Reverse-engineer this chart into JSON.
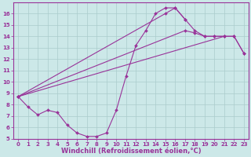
{
  "xlabel": "Windchill (Refroidissement éolien,°C)",
  "background_color": "#cce8e8",
  "grid_color": "#aacccc",
  "line_color": "#993399",
  "xlim": [
    -0.5,
    23.5
  ],
  "ylim": [
    5,
    17
  ],
  "xticks": [
    0,
    1,
    2,
    3,
    4,
    5,
    6,
    7,
    8,
    9,
    10,
    11,
    12,
    13,
    14,
    15,
    16,
    17,
    18,
    19,
    20,
    21,
    22,
    23
  ],
  "yticks": [
    5,
    6,
    7,
    8,
    9,
    10,
    11,
    12,
    13,
    14,
    15,
    16
  ],
  "curves": [
    {
      "x": [
        0,
        1,
        2,
        3,
        4,
        5,
        6,
        7,
        8,
        9,
        10,
        11,
        12,
        13,
        14,
        15,
        16,
        17
      ],
      "y": [
        8.7,
        7.8,
        7.1,
        7.5,
        7.3,
        6.2,
        5.5,
        5.2,
        5.2,
        5.5,
        7.5,
        10.5,
        13.2,
        14.5,
        16.0,
        16.5,
        16.5,
        15.5
      ]
    },
    {
      "x": [
        0,
        15,
        16,
        17,
        18,
        19,
        20,
        21,
        22,
        23
      ],
      "y": [
        8.7,
        16.0,
        16.5,
        15.5,
        14.5,
        14.0,
        14.0,
        14.0,
        14.0,
        12.5
      ]
    },
    {
      "x": [
        0,
        21,
        22,
        23
      ],
      "y": [
        8.7,
        14.0,
        14.0,
        12.5
      ]
    },
    {
      "x": [
        0,
        17,
        18,
        19,
        20,
        21
      ],
      "y": [
        8.7,
        14.5,
        14.3,
        14.0,
        14.0,
        14.0
      ]
    }
  ],
  "marker": "D",
  "markersize": 2,
  "linewidth": 0.8,
  "font_color": "#993399",
  "tick_fontsize": 5,
  "xlabel_fontsize": 6,
  "axis_color": "#993399"
}
